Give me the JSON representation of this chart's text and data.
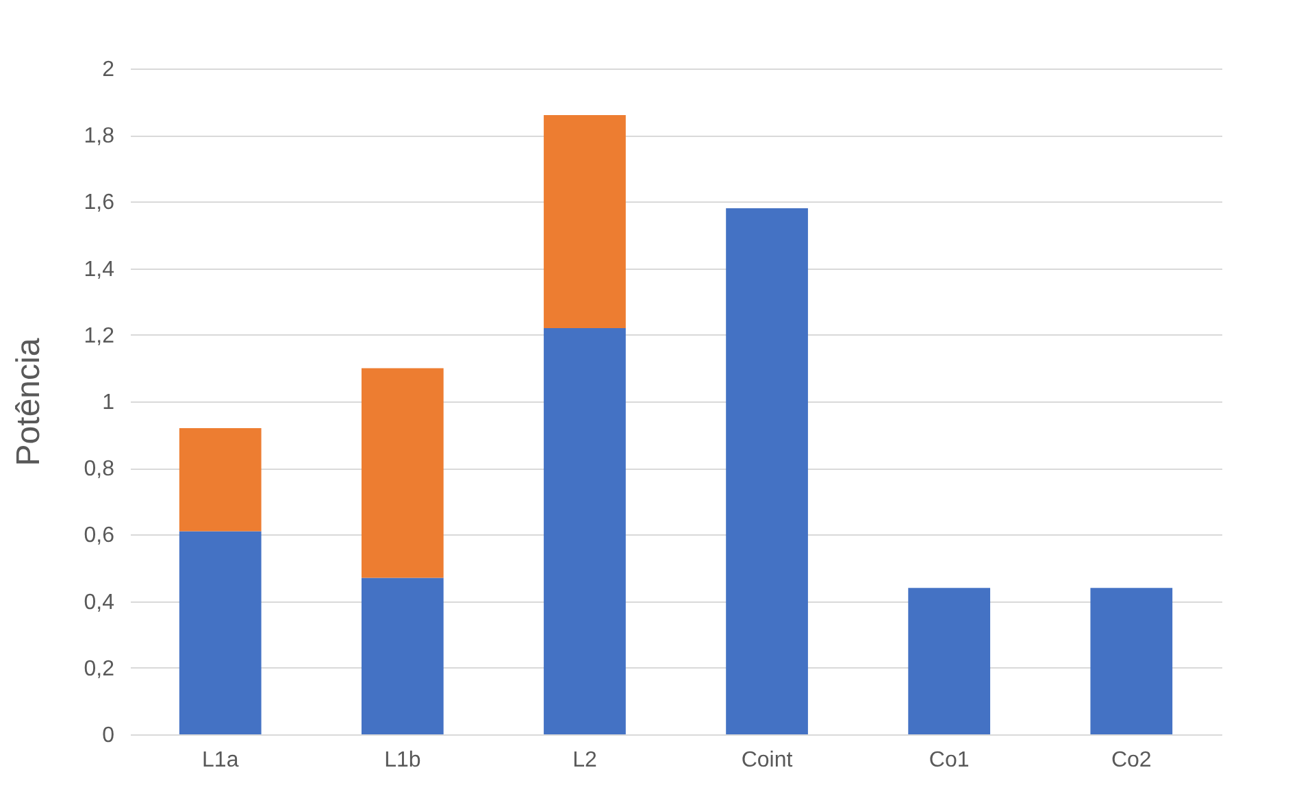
{
  "chart_data": {
    "type": "bar",
    "stacked": true,
    "ylabel": "Potência",
    "categories": [
      "L1a",
      "L1b",
      "L2",
      "Coint",
      "Co1",
      "Co2"
    ],
    "series": [
      {
        "color": "#4472c4",
        "values": [
          0.61,
          0.47,
          1.22,
          1.58,
          0.44,
          0.44
        ]
      },
      {
        "color": "#ed7d31",
        "values": [
          0.31,
          0.63,
          0.64,
          null,
          null,
          null
        ]
      }
    ],
    "ylim": [
      0,
      2
    ],
    "yticks": [
      0,
      {
        "value": 0.2,
        "label": "0,2"
      },
      {
        "value": 0.4,
        "label": "0,4"
      },
      {
        "value": 0.6,
        "label": "0,6"
      },
      {
        "value": 0.8,
        "label": "0,8"
      },
      1,
      {
        "value": 1.2,
        "label": "1,2"
      },
      {
        "value": 1.4,
        "label": "1,4"
      },
      {
        "value": 1.6,
        "label": "1,6"
      },
      {
        "value": 1.8,
        "label": "1,8"
      },
      2
    ],
    "grid": "y",
    "legend": false
  }
}
